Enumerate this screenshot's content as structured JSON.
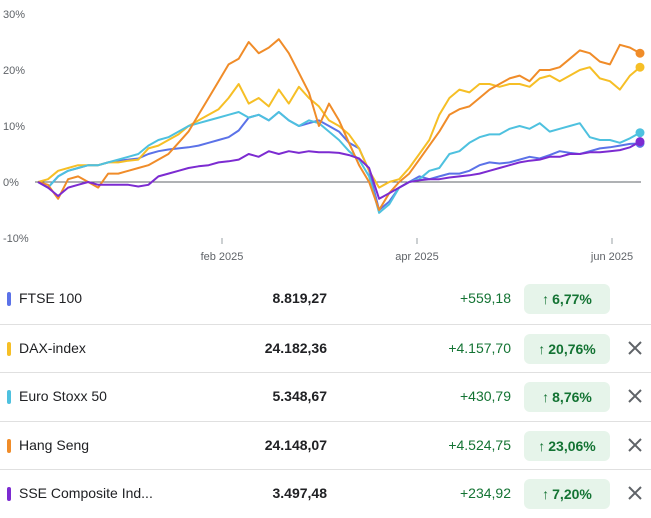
{
  "chart_data": {
    "type": "line",
    "x_ticks": [
      "feb 2025",
      "apr 2025",
      "jun 2025"
    ],
    "y_ticks": [
      "30%",
      "20%",
      "10%",
      "0%",
      "-10%"
    ],
    "ylim": [
      -10,
      30
    ],
    "grid": false,
    "series": [
      {
        "name": "FTSE 100",
        "color": "#5b72e8",
        "values": [
          0,
          -1,
          1,
          2,
          2.5,
          3,
          3,
          3.5,
          3.8,
          4,
          4.2,
          5,
          5.5,
          5.8,
          6,
          6.2,
          6.5,
          7,
          7.5,
          8,
          9.2,
          11.5,
          12,
          11,
          12.5,
          11,
          10,
          10.5,
          11,
          10,
          9,
          7,
          6,
          2,
          -5,
          -3.5,
          -1,
          0,
          1,
          0.5,
          1,
          1.5,
          1.5,
          2,
          3,
          3.5,
          3.3,
          3.5,
          4,
          4.5,
          4.2,
          4.8,
          5.5,
          5.2,
          5,
          5.5,
          6,
          6.2,
          6.5,
          6.8,
          6.9
        ]
      },
      {
        "name": "DAX-index",
        "color": "#f6bf26",
        "values": [
          0,
          0.5,
          2,
          2.5,
          3,
          3,
          3,
          3.5,
          3.5,
          3.8,
          4,
          6,
          6.5,
          7.5,
          8.5,
          10,
          11,
          12,
          13,
          15,
          17.5,
          14,
          15,
          13.5,
          16.5,
          14,
          17,
          15,
          13.5,
          11,
          10,
          8.5,
          6,
          2,
          -1,
          0,
          0.5,
          2.5,
          5,
          7.5,
          12,
          15,
          16.5,
          16,
          17.5,
          17.5,
          17,
          17.5,
          17.5,
          17,
          18.5,
          19,
          18,
          19,
          20,
          20.5,
          18.5,
          18,
          16.5,
          19,
          20.5
        ]
      },
      {
        "name": "Euro Stoxx 50",
        "color": "#4ec1df",
        "values": [
          0,
          -1,
          1,
          2,
          2.5,
          3,
          3,
          3.5,
          4,
          4.5,
          5,
          6.5,
          7.5,
          8,
          9,
          10,
          10.5,
          11,
          11.5,
          12,
          12.5,
          11.5,
          12,
          11,
          12.5,
          11,
          10,
          11,
          10.5,
          9,
          7.5,
          5.5,
          4,
          1,
          -5.5,
          -4,
          -1,
          0,
          0.5,
          2,
          2.5,
          5,
          5.5,
          7,
          8,
          8.5,
          8.5,
          9.5,
          10,
          9.5,
          10.5,
          9,
          9.5,
          10,
          10.5,
          8,
          7.5,
          7.5,
          7,
          7.8,
          8.8
        ]
      },
      {
        "name": "Hang Seng",
        "color": "#f08c29",
        "values": [
          0,
          -0.5,
          -3,
          0.5,
          1,
          0,
          -1,
          1.5,
          1.5,
          2,
          2.5,
          3,
          4,
          5,
          7,
          9,
          12,
          15,
          18,
          21,
          22,
          25,
          23,
          24,
          25.5,
          23,
          19.5,
          16,
          10,
          14,
          11,
          7,
          3,
          0,
          -5,
          -2,
          0,
          1.5,
          4,
          6.5,
          9,
          12,
          13,
          13.5,
          15,
          16.5,
          17.5,
          18.5,
          19,
          18,
          20,
          20,
          20.5,
          22,
          23.5,
          23,
          21.5,
          21,
          24.5,
          24,
          23
        ]
      },
      {
        "name": "SSE Composite Ind...",
        "color": "#7c2bd1",
        "values": [
          0,
          -1,
          -2.5,
          -1,
          -0.5,
          0,
          -0.5,
          -0.5,
          -0.5,
          -0.5,
          -0.8,
          -0.5,
          1,
          1.5,
          2,
          2.5,
          2.8,
          3,
          3.5,
          3.7,
          4,
          5,
          4.5,
          5.5,
          5,
          5.5,
          5.2,
          5.5,
          5.3,
          5.3,
          5.2,
          4.8,
          4.2,
          2.5,
          -3,
          -2,
          -1,
          0,
          0.3,
          0.5,
          0.5,
          0.8,
          1,
          1.2,
          1.5,
          2,
          2.5,
          3,
          3.5,
          3.8,
          4,
          4.5,
          4.5,
          5,
          5,
          5.3,
          5.3,
          5.5,
          5.7,
          6.2,
          7.2
        ]
      }
    ]
  },
  "rows": [
    {
      "name": "FTSE 100",
      "color": "#5b72e8",
      "price": "8.819,27",
      "change": "+559,18",
      "pct": "6,77%",
      "arrow": "↑"
    },
    {
      "name": "DAX-index",
      "color": "#f6bf26",
      "price": "24.182,36",
      "change": "+4.157,70",
      "pct": "20,76%",
      "arrow": "↑"
    },
    {
      "name": "Euro Stoxx 50",
      "color": "#4ec1df",
      "price": "5.348,67",
      "change": "+430,79",
      "pct": "8,76%",
      "arrow": "↑"
    },
    {
      "name": "Hang Seng",
      "color": "#f08c29",
      "price": "24.148,07",
      "change": "+4.524,75",
      "pct": "23,06%",
      "arrow": "↑"
    },
    {
      "name": "SSE Composite Ind...",
      "color": "#7c2bd1",
      "price": "3.497,48",
      "change": "+234,92",
      "pct": "7,20%",
      "arrow": "↑"
    }
  ]
}
